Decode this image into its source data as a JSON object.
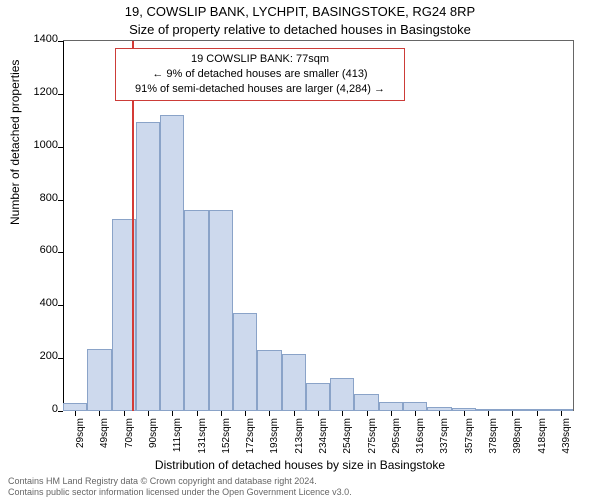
{
  "title_line1": "19, COWSLIP BANK, LYCHPIT, BASINGSTOKE, RG24 8RP",
  "title_line2": "Size of property relative to detached houses in Basingstoke",
  "y_axis_label": "Number of detached properties",
  "x_axis_label": "Distribution of detached houses by size in Basingstoke",
  "chart": {
    "type": "histogram",
    "ylim": [
      0,
      1400
    ],
    "yticks": [
      0,
      200,
      400,
      600,
      800,
      1000,
      1200,
      1400
    ],
    "x_categories": [
      "29sqm",
      "49sqm",
      "70sqm",
      "90sqm",
      "111sqm",
      "131sqm",
      "152sqm",
      "172sqm",
      "193sqm",
      "213sqm",
      "234sqm",
      "254sqm",
      "275sqm",
      "295sqm",
      "316sqm",
      "337sqm",
      "357sqm",
      "378sqm",
      "398sqm",
      "418sqm",
      "439sqm"
    ],
    "values": [
      30,
      235,
      725,
      1095,
      1120,
      760,
      760,
      370,
      230,
      215,
      105,
      125,
      65,
      35,
      35,
      15,
      12,
      8,
      5,
      4,
      3
    ],
    "bar_fill": "#cdd9ed",
    "bar_stroke": "#8aa3c8",
    "background_color": "#ffffff",
    "axis_color": "#000000",
    "frame_color": "#666666",
    "marker": {
      "value_sqm": 77,
      "color": "#d43b36"
    }
  },
  "annotation": {
    "line1": "19 COWSLIP BANK: 77sqm",
    "line2": "← 9% of detached houses are smaller (413)",
    "line3": "91% of semi-detached houses are larger (4,284) →",
    "border_color": "#cc3c38"
  },
  "footer_line1": "Contains HM Land Registry data © Crown copyright and database right 2024.",
  "footer_line2": "Contains public sector information licensed under the Open Government Licence v3.0."
}
